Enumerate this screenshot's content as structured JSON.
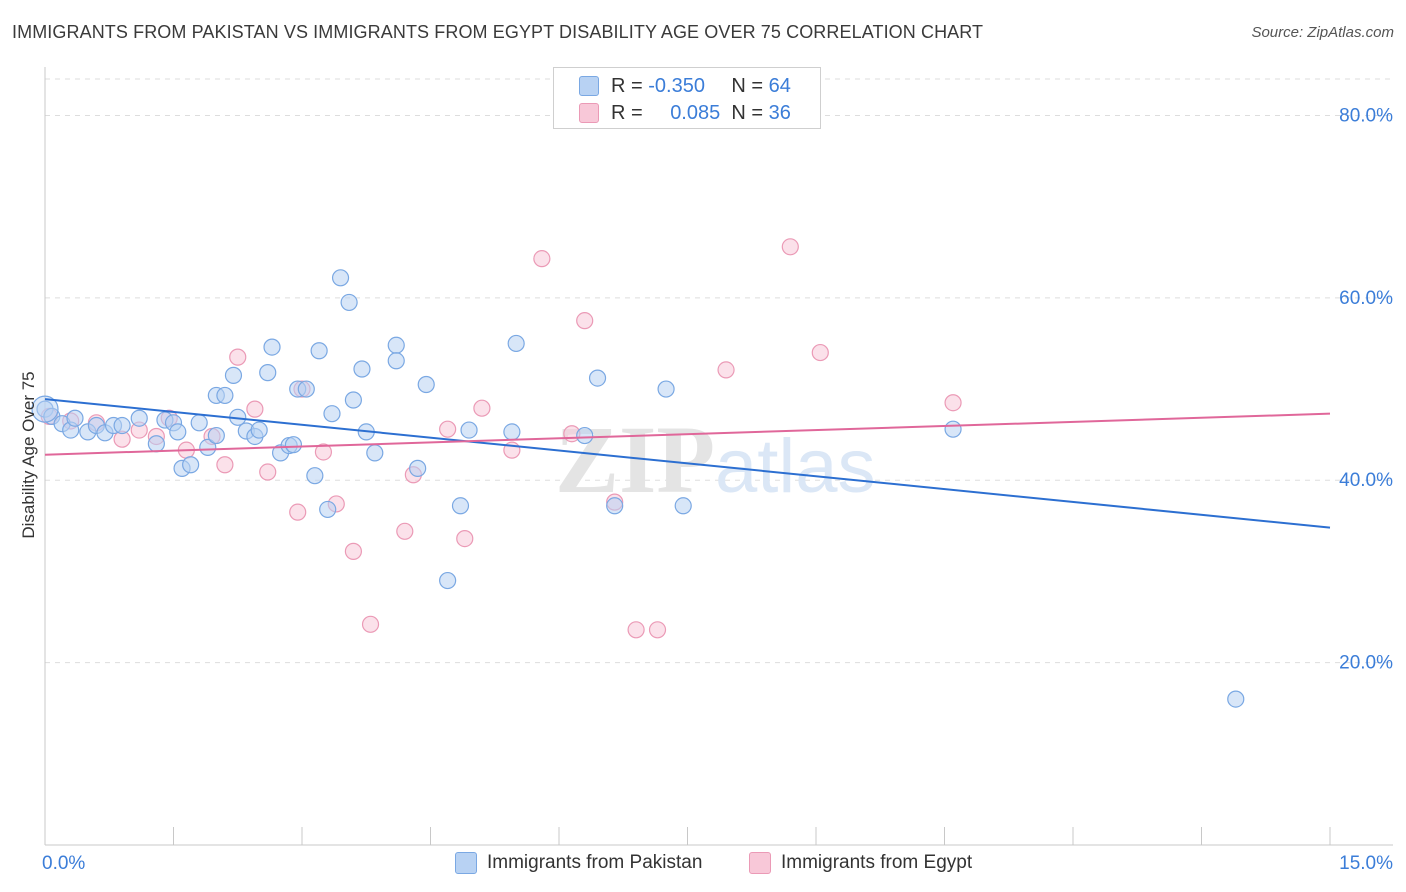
{
  "title": "IMMIGRANTS FROM PAKISTAN VS IMMIGRANTS FROM EGYPT DISABILITY AGE OVER 75 CORRELATION CHART",
  "source": "Source: ZipAtlas.com",
  "watermark": {
    "zip": "ZIP",
    "atlas": "atlas"
  },
  "legend": {
    "r_label": "R =",
    "n_label": "N =",
    "rows": [
      {
        "r": "-0.350",
        "n": "64"
      },
      {
        "r": "0.085",
        "n": "36"
      }
    ]
  },
  "colors": {
    "pakistan_fill": "#b8d2f3",
    "pakistan_stroke": "#7aa8e3",
    "pakistan_line": "#2c6fd1",
    "egypt_fill": "#f8c8d8",
    "egypt_stroke": "#eb9ab6",
    "egypt_line": "#e0679a",
    "tick_label": "#3b7dd8",
    "grid": "#dddddd"
  },
  "chart_data": {
    "type": "scatter",
    "title": "IMMIGRANTS FROM PAKISTAN VS IMMIGRANTS FROM EGYPT DISABILITY AGE OVER 75 CORRELATION CHART",
    "xlabel": "",
    "ylabel": "Disability Age Over 75",
    "xlim": [
      0,
      15
    ],
    "ylim": [
      0,
      84
    ],
    "x_tick_labels": [
      "0.0%",
      "15.0%"
    ],
    "y_ticks": [
      20,
      40,
      60,
      80
    ],
    "y_tick_labels": [
      "20.0%",
      "40.0%",
      "60.0%",
      "80.0%"
    ],
    "grid": "horizontal dashed",
    "legend_position": "top-center",
    "series": [
      {
        "name": "Immigrants from Pakistan",
        "points": [
          [
            0.0,
            47.8
          ],
          [
            0.08,
            47.0
          ],
          [
            0.2,
            46.2
          ],
          [
            0.3,
            45.5
          ],
          [
            0.35,
            46.8
          ],
          [
            0.5,
            45.3
          ],
          [
            0.6,
            46.0
          ],
          [
            0.7,
            45.2
          ],
          [
            0.8,
            46.0
          ],
          [
            0.9,
            46.0
          ],
          [
            1.1,
            46.8
          ],
          [
            1.3,
            44.0
          ],
          [
            1.4,
            46.6
          ],
          [
            1.5,
            46.3
          ],
          [
            1.55,
            45.3
          ],
          [
            1.6,
            41.3
          ],
          [
            1.7,
            41.7
          ],
          [
            1.8,
            46.3
          ],
          [
            1.9,
            43.6
          ],
          [
            2.0,
            44.9
          ],
          [
            2.0,
            49.3
          ],
          [
            2.1,
            49.3
          ],
          [
            2.2,
            51.5
          ],
          [
            2.25,
            46.9
          ],
          [
            2.35,
            45.4
          ],
          [
            2.45,
            44.8
          ],
          [
            2.5,
            45.5
          ],
          [
            2.6,
            51.8
          ],
          [
            2.65,
            54.6
          ],
          [
            2.75,
            43.0
          ],
          [
            2.85,
            43.8
          ],
          [
            2.9,
            43.9
          ],
          [
            2.95,
            50.0
          ],
          [
            3.05,
            50.0
          ],
          [
            3.15,
            40.5
          ],
          [
            3.2,
            54.2
          ],
          [
            3.3,
            36.8
          ],
          [
            3.35,
            47.3
          ],
          [
            3.45,
            62.2
          ],
          [
            3.55,
            59.5
          ],
          [
            3.6,
            48.8
          ],
          [
            3.7,
            52.2
          ],
          [
            3.75,
            45.3
          ],
          [
            3.85,
            43.0
          ],
          [
            4.1,
            54.8
          ],
          [
            4.1,
            53.1
          ],
          [
            4.35,
            41.3
          ],
          [
            4.45,
            50.5
          ],
          [
            4.7,
            29.0
          ],
          [
            4.85,
            37.2
          ],
          [
            4.95,
            45.5
          ],
          [
            5.45,
            45.3
          ],
          [
            5.5,
            55.0
          ],
          [
            6.3,
            44.9
          ],
          [
            6.45,
            51.2
          ],
          [
            6.65,
            37.2
          ],
          [
            7.25,
            50.0
          ],
          [
            7.45,
            37.2
          ],
          [
            10.6,
            45.6
          ],
          [
            13.9,
            16.0
          ]
        ]
      },
      {
        "name": "Immigrants from Egypt",
        "points": [
          [
            0.05,
            47.0
          ],
          [
            0.3,
            46.5
          ],
          [
            0.6,
            46.3
          ],
          [
            0.9,
            44.5
          ],
          [
            1.1,
            45.5
          ],
          [
            1.3,
            44.8
          ],
          [
            1.45,
            46.8
          ],
          [
            1.65,
            43.3
          ],
          [
            1.95,
            44.8
          ],
          [
            2.1,
            41.7
          ],
          [
            2.25,
            53.5
          ],
          [
            2.45,
            47.8
          ],
          [
            2.6,
            40.9
          ],
          [
            2.95,
            36.5
          ],
          [
            3.0,
            50.0
          ],
          [
            3.25,
            43.1
          ],
          [
            3.4,
            37.4
          ],
          [
            3.6,
            32.2
          ],
          [
            3.8,
            24.2
          ],
          [
            4.2,
            34.4
          ],
          [
            4.3,
            40.6
          ],
          [
            4.7,
            45.6
          ],
          [
            4.9,
            33.6
          ],
          [
            5.1,
            47.9
          ],
          [
            5.45,
            43.3
          ],
          [
            5.8,
            64.3
          ],
          [
            6.15,
            45.1
          ],
          [
            6.3,
            57.5
          ],
          [
            6.65,
            37.6
          ],
          [
            6.9,
            23.6
          ],
          [
            7.15,
            23.6
          ],
          [
            7.95,
            52.1
          ],
          [
            8.7,
            65.6
          ],
          [
            9.05,
            54.0
          ],
          [
            10.6,
            48.5
          ]
        ]
      }
    ],
    "trend_lines": [
      {
        "name": "Immigrants from Pakistan",
        "x": [
          0,
          15
        ],
        "y": [
          48.9,
          34.8
        ]
      },
      {
        "name": "Immigrants from Egypt",
        "x": [
          0,
          15
        ],
        "y": [
          42.8,
          47.3
        ]
      }
    ]
  },
  "bottom_legend": [
    "Immigrants from Pakistan",
    "Immigrants from Egypt"
  ]
}
